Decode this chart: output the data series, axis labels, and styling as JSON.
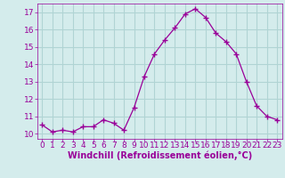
{
  "x": [
    0,
    1,
    2,
    3,
    4,
    5,
    6,
    7,
    8,
    9,
    10,
    11,
    12,
    13,
    14,
    15,
    16,
    17,
    18,
    19,
    20,
    21,
    22,
    23
  ],
  "y": [
    10.5,
    10.1,
    10.2,
    10.1,
    10.4,
    10.4,
    10.8,
    10.6,
    10.2,
    11.5,
    13.3,
    14.6,
    15.4,
    16.1,
    16.9,
    17.2,
    16.7,
    15.8,
    15.3,
    14.6,
    13.0,
    11.6,
    11.0,
    10.8
  ],
  "line_color": "#990099",
  "marker": "+",
  "marker_size": 4,
  "bg_color": "#d4ecec",
  "grid_color": "#b0d4d4",
  "xlabel": "Windchill (Refroidissement éolien,°C)",
  "xlabel_color": "#990099",
  "tick_color": "#990099",
  "label_color": "#990099",
  "ylim": [
    9.7,
    17.5
  ],
  "xlim": [
    -0.5,
    23.5
  ],
  "yticks": [
    10,
    11,
    12,
    13,
    14,
    15,
    16,
    17
  ],
  "xticks": [
    0,
    1,
    2,
    3,
    4,
    5,
    6,
    7,
    8,
    9,
    10,
    11,
    12,
    13,
    14,
    15,
    16,
    17,
    18,
    19,
    20,
    21,
    22,
    23
  ],
  "tick_fontsize": 6.5,
  "xlabel_fontsize": 7.0
}
